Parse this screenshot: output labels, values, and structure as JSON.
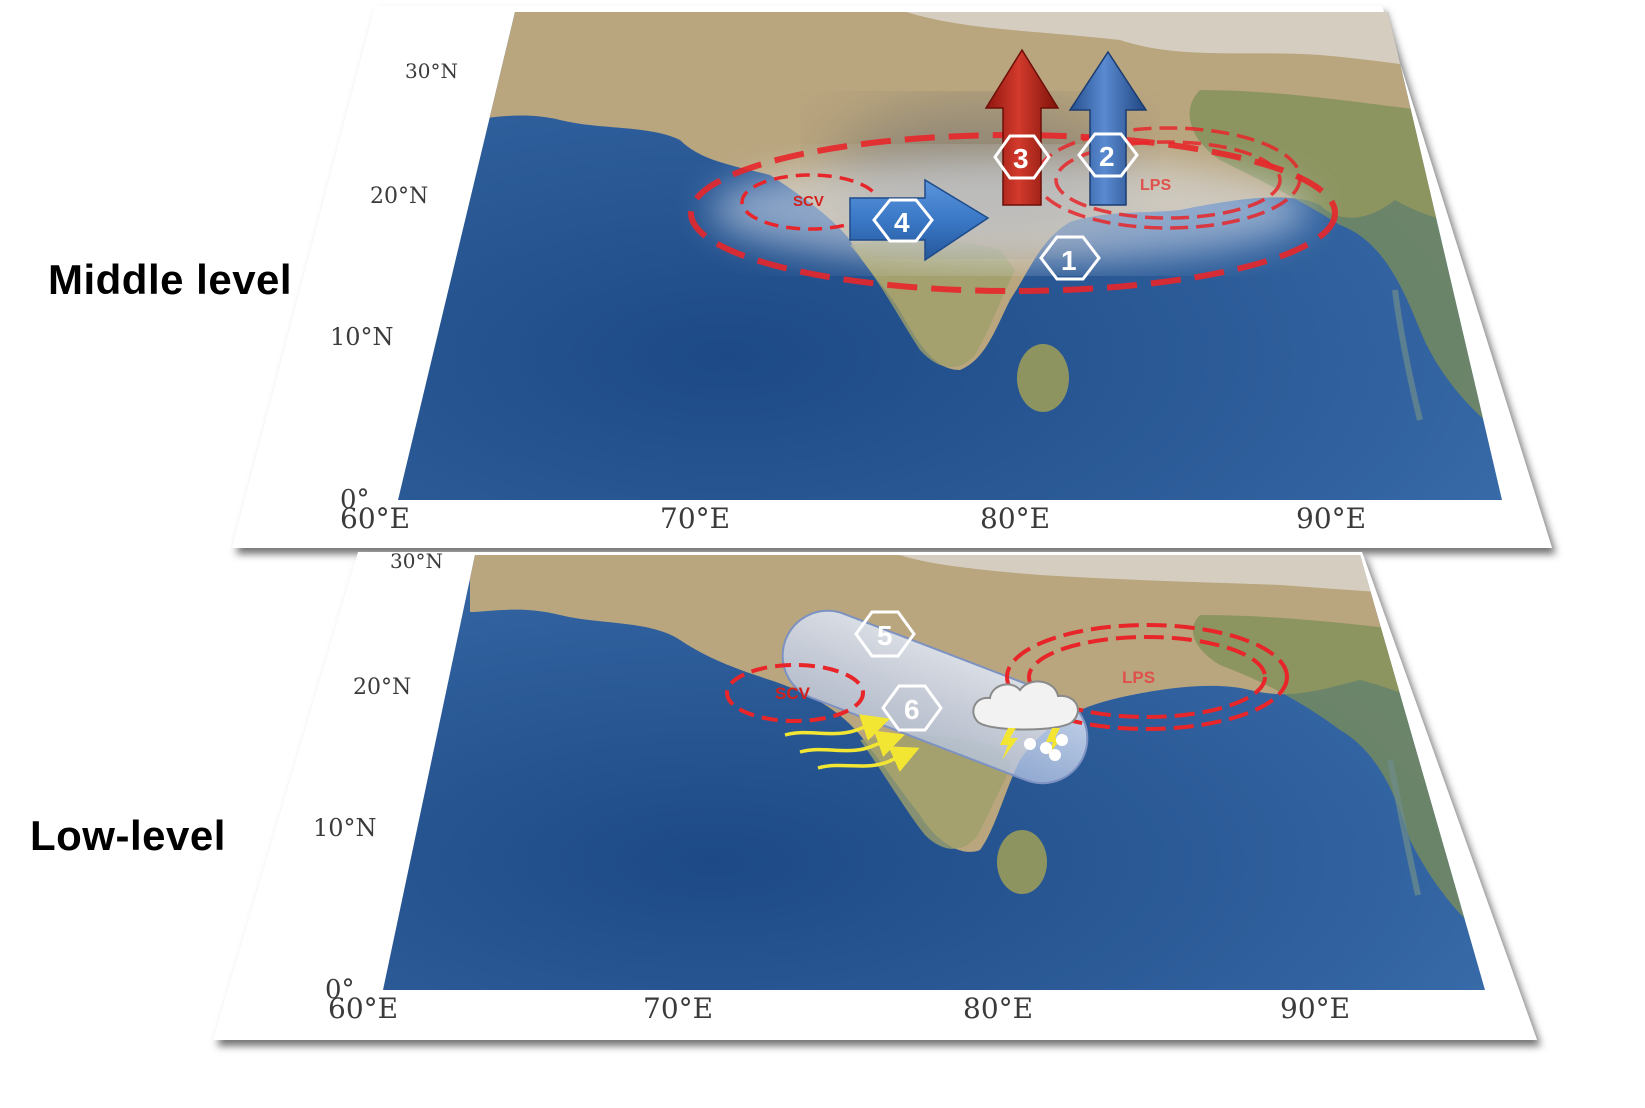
{
  "figure": {
    "layers": [
      {
        "id": "middle",
        "label": "Middle level",
        "lat_ticks": [
          "30°N",
          "20°N",
          "10°N",
          "0°"
        ],
        "lon_ticks": [
          "60°E",
          "70°E",
          "80°E",
          "90°E"
        ],
        "systems": {
          "scv": "SCV",
          "lps": "LPS"
        },
        "markers": [
          "1",
          "2",
          "3",
          "4"
        ]
      },
      {
        "id": "low",
        "label": "Low-level",
        "lat_ticks": [
          "30°N",
          "20°N",
          "10°N",
          "0°"
        ],
        "lon_ticks": [
          "60°E",
          "70°E",
          "80°E",
          "90°E"
        ],
        "systems": {
          "scv": "SCV",
          "lps": "LPS"
        },
        "markers": [
          "5",
          "6"
        ]
      }
    ],
    "colors": {
      "ocean": "#2f5f9c",
      "land": "#b8a27a",
      "vortex_dash": "#e8262a",
      "red_arrow": "#b3221a",
      "blue_arrow": "#3a6fb5",
      "flow_arrows": "#f2e633",
      "cloud_band": "#c9d6ee"
    },
    "icons": [
      "cloud-rain-lightning-icon",
      "hexagon-marker-icon",
      "vertical-arrow-icon",
      "horizontal-arrow-icon"
    ]
  }
}
